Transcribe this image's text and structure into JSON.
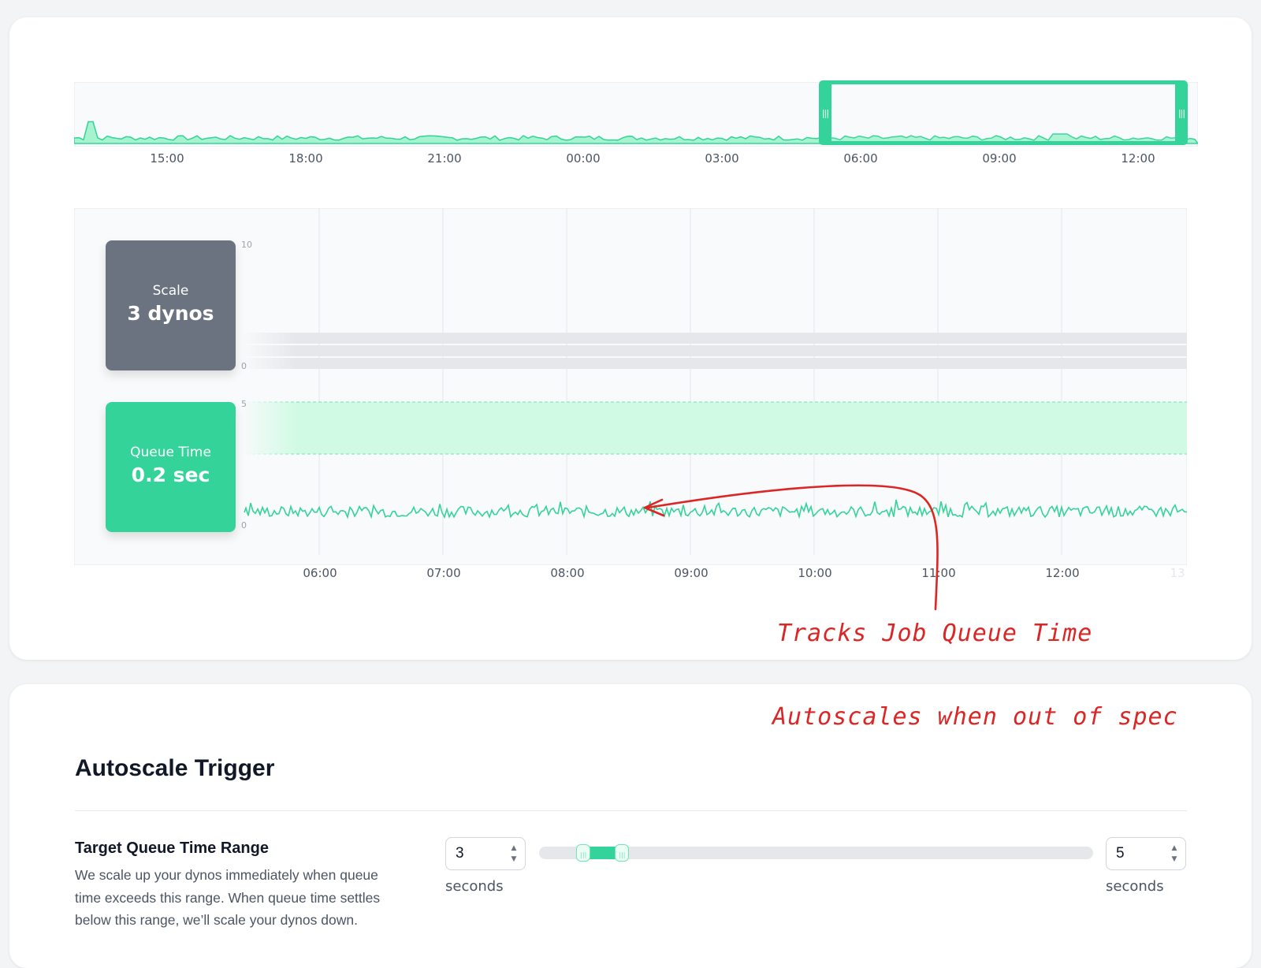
{
  "overview": {
    "time_ticks": [
      "15:00",
      "18:00",
      "21:00",
      "00:00",
      "03:00",
      "06:00",
      "09:00",
      "12:00"
    ]
  },
  "detail": {
    "time_ticks": [
      "06:00",
      "07:00",
      "08:00",
      "09:00",
      "10:00",
      "11:00",
      "12:00",
      "13"
    ],
    "scale_panel": {
      "y_max": "10",
      "y_min": "0"
    },
    "queue_panel": {
      "y_max": "5",
      "y_min": "0"
    }
  },
  "tiles": {
    "scale": {
      "label": "Scale",
      "value": "3 dynos"
    },
    "queue_time": {
      "label": "Queue Time",
      "value": "0.2 sec"
    }
  },
  "annotations": {
    "tracks": "Tracks Job Queue Time",
    "autoscales": "Autoscales when out of spec"
  },
  "autoscale": {
    "title": "Autoscale Trigger",
    "range_label": "Target Queue Time Range",
    "description": "We scale up your dynos immediately when queue time exceeds this range. When queue time settles below this range, we’ll scale your dynos down.",
    "min_value": "3",
    "max_value": "5",
    "min_unit": "seconds",
    "max_unit": "seconds",
    "slider_low": 0.08,
    "slider_high": 0.15
  },
  "colors": {
    "accent": "#34d399",
    "scale_tile": "#6b7280",
    "annotation": "#dc2626"
  },
  "icons": [
    "grip-icon",
    "chevron-up-icon",
    "chevron-down-icon",
    "arrow-icon"
  ]
}
